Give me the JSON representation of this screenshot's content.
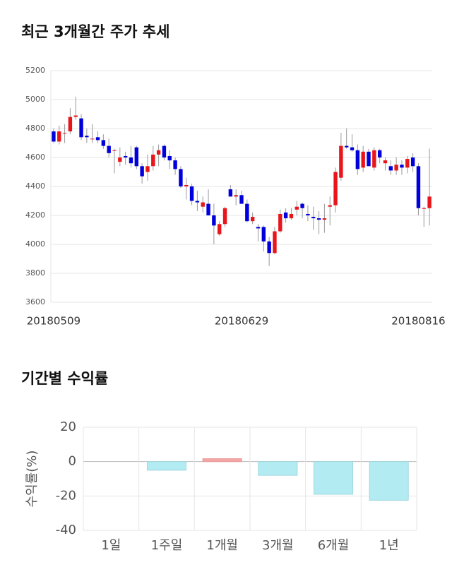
{
  "chart_data": [
    {
      "type": "candlestick",
      "title": "최근 3개월간 주가 추세",
      "categories": [
        "20180509",
        null,
        null,
        null,
        null,
        null,
        null,
        null,
        null,
        null,
        null,
        null,
        null,
        null,
        null,
        null,
        null,
        null,
        null,
        null,
        null,
        null,
        null,
        null,
        null,
        null,
        null,
        null,
        null,
        null,
        null,
        null,
        null,
        null,
        "20180629",
        null,
        null,
        null,
        null,
        null,
        null,
        null,
        null,
        null,
        null,
        null,
        null,
        null,
        null,
        null,
        null,
        null,
        null,
        null,
        null,
        null,
        null,
        null,
        null,
        null,
        null,
        null,
        null,
        null,
        null,
        null,
        "20180816",
        null,
        null
      ],
      "open": [
        4780,
        4710,
        4770,
        4780,
        4880,
        4870,
        4750,
        4730,
        4740,
        4720,
        4680,
        4650,
        4570,
        4610,
        4600,
        4670,
        4540,
        4500,
        4540,
        4620,
        4680,
        4610,
        4580,
        4520,
        4400,
        4400,
        4300,
        4260,
        4280,
        4200,
        4070,
        4140,
        4380,
        4330,
        4340,
        4280,
        4160,
        4120,
        4120,
        4020,
        3940,
        4090,
        4220,
        4180,
        4240,
        4280,
        4210,
        4190,
        4180,
        4170,
        4260,
        4270,
        4460,
        4680,
        4670,
        4650,
        4530,
        4640,
        4530,
        4650,
        4560,
        4540,
        4510,
        4550,
        4530,
        4600,
        4540,
        4250,
        4250
      ],
      "high": [
        4800,
        4820,
        4830,
        4940,
        5020,
        4900,
        4800,
        4830,
        4780,
        4760,
        4730,
        4660,
        4670,
        4640,
        4680,
        4680,
        4560,
        4620,
        4680,
        4690,
        4690,
        4650,
        4600,
        4540,
        4460,
        4420,
        4370,
        4330,
        4380,
        4280,
        4160,
        4260,
        4410,
        4380,
        4370,
        4310,
        4220,
        4140,
        4130,
        4050,
        4120,
        4240,
        4250,
        4250,
        4300,
        4290,
        4270,
        4260,
        4230,
        4280,
        4330,
        4530,
        4770,
        4800,
        4760,
        4690,
        4680,
        4660,
        4670,
        4660,
        4600,
        4580,
        4600,
        4580,
        4610,
        4630,
        4560,
        4260,
        4660
      ],
      "low": [
        4700,
        4690,
        4700,
        4760,
        4860,
        4720,
        4700,
        4700,
        4700,
        4660,
        4600,
        4490,
        4540,
        4550,
        4530,
        4520,
        4420,
        4440,
        4510,
        4540,
        4580,
        4520,
        4480,
        4390,
        4310,
        4270,
        4230,
        4220,
        4210,
        4000,
        4060,
        4120,
        4330,
        4270,
        4290,
        4150,
        4140,
        4020,
        3950,
        3850,
        3930,
        4080,
        4150,
        4170,
        4200,
        4180,
        4160,
        4100,
        4070,
        4080,
        4130,
        4220,
        4440,
        4660,
        4640,
        4480,
        4500,
        4540,
        4510,
        4560,
        4510,
        4480,
        4480,
        4480,
        4490,
        4500,
        4200,
        4120,
        4130
      ],
      "close": [
        4710,
        4780,
        4770,
        4880,
        4890,
        4740,
        4740,
        4730,
        4720,
        4680,
        4630,
        4650,
        4600,
        4600,
        4560,
        4540,
        4470,
        4540,
        4620,
        4650,
        4600,
        4580,
        4520,
        4400,
        4410,
        4300,
        4290,
        4290,
        4200,
        4130,
        4140,
        4250,
        4330,
        4340,
        4280,
        4160,
        4190,
        4110,
        4020,
        3940,
        4090,
        4210,
        4180,
        4210,
        4260,
        4250,
        4200,
        4180,
        4170,
        4180,
        4270,
        4500,
        4680,
        4670,
        4650,
        4520,
        4640,
        4540,
        4650,
        4600,
        4580,
        4510,
        4550,
        4530,
        4590,
        4540,
        4250,
        4250,
        4330
      ],
      "ylim": [
        3600,
        5200
      ],
      "yticks": [
        3600,
        3800,
        4000,
        4200,
        4400,
        4600,
        4800,
        5000,
        5200
      ],
      "up_color": "#e8161b",
      "down_color": "#0000dc",
      "grid": true
    },
    {
      "type": "bar",
      "title": "기간별 수익률",
      "ylabel": "수익률(%)",
      "categories": [
        "1일",
        "1주일",
        "1개월",
        "3개월",
        "6개월",
        "1년"
      ],
      "values": [
        0,
        -5,
        1.7,
        -8,
        -19,
        -22.5
      ],
      "positive_color": "#f4a6a6",
      "negative_color": "#b2ebf2",
      "ylim": [
        -40,
        20
      ],
      "yticks": [
        -40,
        -20,
        0,
        20
      ],
      "grid": true
    }
  ]
}
